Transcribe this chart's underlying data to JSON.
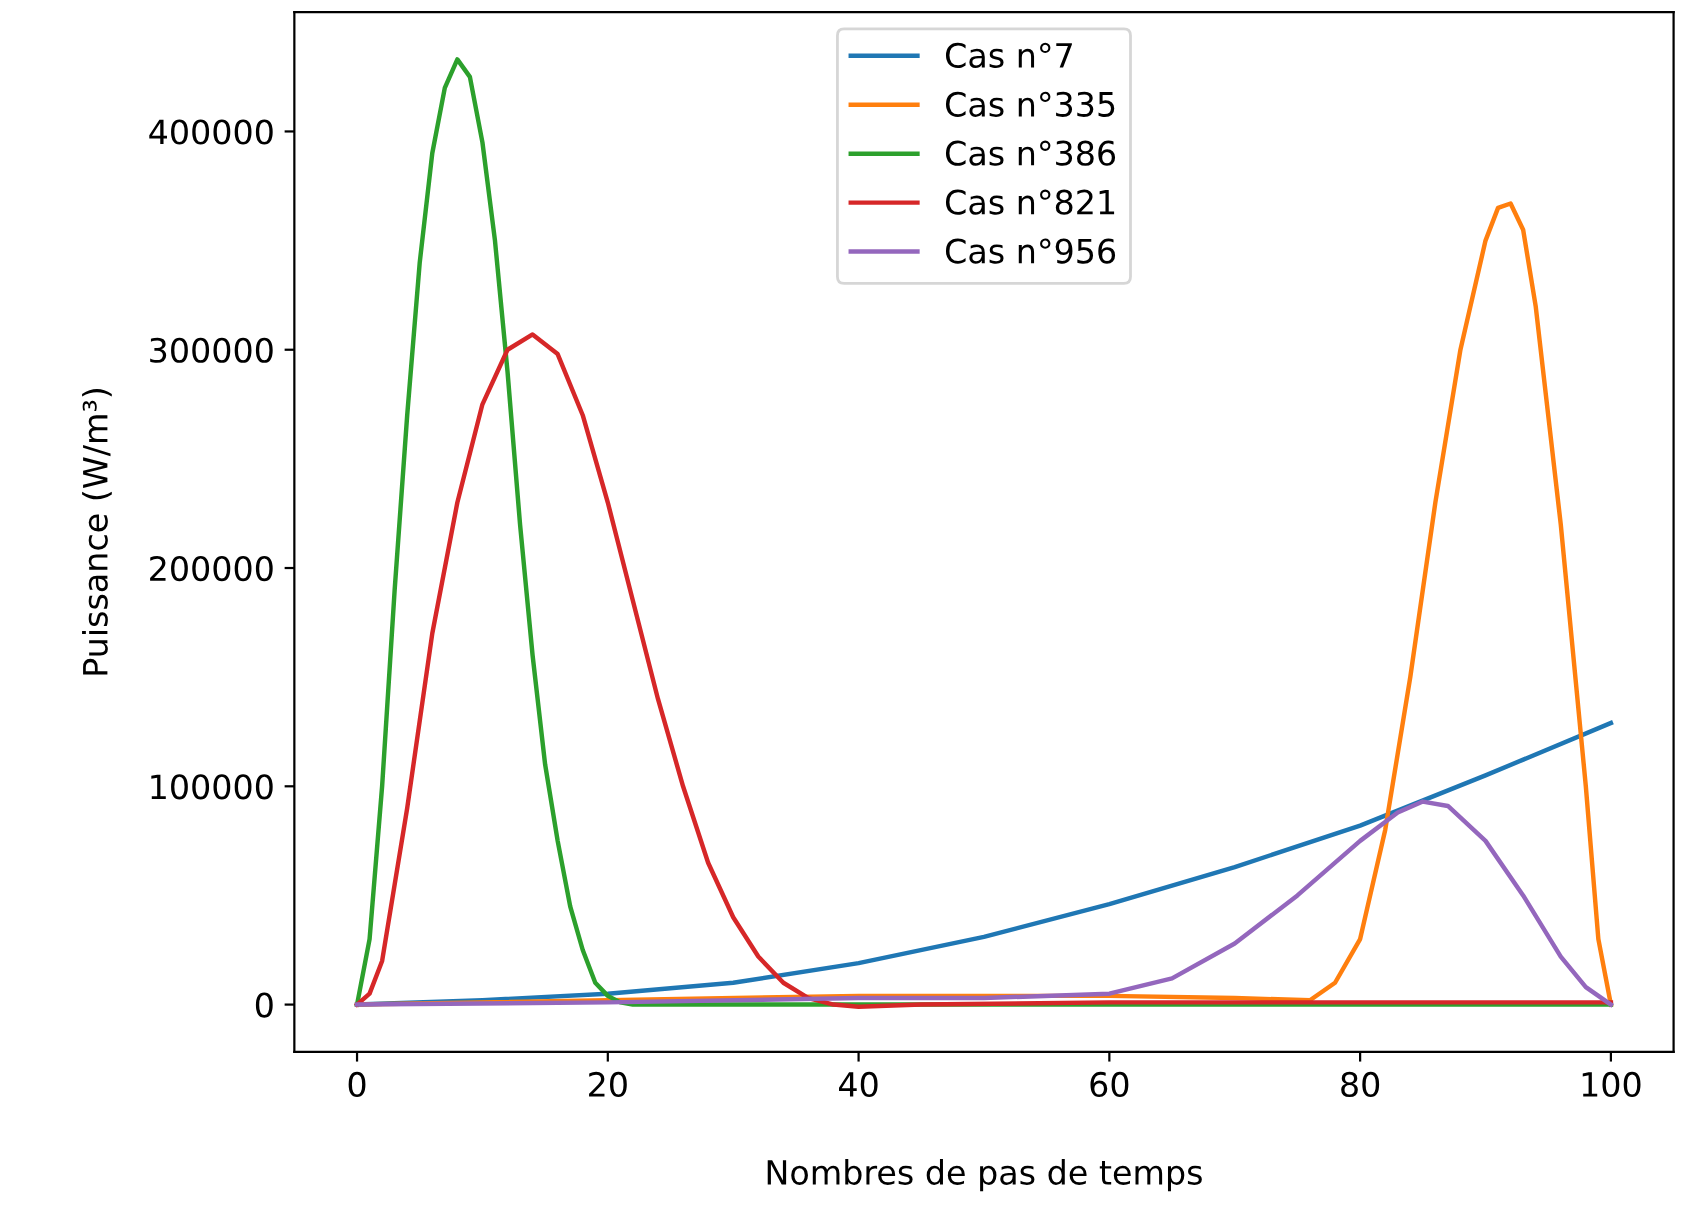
{
  "chart_data": {
    "type": "line",
    "xlabel": "Nombres de pas de temps",
    "ylabel": "Puissance (W/m³)",
    "xlim": [
      -5,
      105
    ],
    "ylim": [
      -21650,
      454650
    ],
    "xticks": [
      0,
      20,
      40,
      60,
      80,
      100
    ],
    "yticks": [
      0,
      100000,
      200000,
      300000,
      400000
    ],
    "grid": false,
    "legend": "top",
    "marker": "none",
    "line_style": "solid",
    "series": [
      {
        "name": "Cas n°7",
        "color": "#1f77b4",
        "x": [
          0,
          10,
          20,
          30,
          40,
          50,
          60,
          70,
          80,
          90,
          100
        ],
        "values": [
          0,
          2000,
          5000,
          10000,
          19000,
          31000,
          46000,
          63000,
          82000,
          105000,
          129000
        ]
      },
      {
        "name": "Cas n°335",
        "color": "#ff7f0e",
        "x": [
          0,
          40,
          50,
          60,
          70,
          76,
          78,
          80,
          82,
          84,
          86,
          88,
          90,
          91,
          92,
          93,
          94,
          96,
          98,
          99,
          100
        ],
        "values": [
          0,
          4000,
          4000,
          4000,
          3000,
          2000,
          10000,
          30000,
          80000,
          150000,
          230000,
          300000,
          350000,
          365000,
          367000,
          355000,
          320000,
          220000,
          100000,
          30000,
          0
        ]
      },
      {
        "name": "Cas n°386",
        "color": "#2ca02c",
        "x": [
          0,
          1,
          2,
          3,
          4,
          5,
          6,
          7,
          8,
          9,
          10,
          11,
          12,
          13,
          14,
          15,
          16,
          17,
          18,
          19,
          20,
          21,
          22,
          30,
          40,
          60,
          100
        ],
        "values": [
          0,
          30000,
          100000,
          190000,
          270000,
          340000,
          390000,
          420000,
          433000,
          425000,
          395000,
          350000,
          290000,
          220000,
          160000,
          110000,
          75000,
          45000,
          25000,
          10000,
          4000,
          1000,
          0,
          0,
          0,
          0,
          0
        ]
      },
      {
        "name": "Cas n°821",
        "color": "#d62728",
        "x": [
          0,
          1,
          2,
          4,
          6,
          8,
          10,
          12,
          14,
          16,
          18,
          20,
          22,
          24,
          26,
          28,
          30,
          32,
          34,
          36,
          38,
          40,
          45,
          60,
          80,
          100
        ],
        "values": [
          0,
          5000,
          20000,
          90000,
          170000,
          230000,
          275000,
          300000,
          307000,
          298000,
          270000,
          230000,
          185000,
          140000,
          100000,
          65000,
          40000,
          22000,
          10000,
          3000,
          0,
          -1000,
          0,
          1000,
          1000,
          1000
        ]
      },
      {
        "name": "Cas n°956",
        "color": "#9467bd",
        "x": [
          0,
          20,
          40,
          50,
          60,
          65,
          70,
          75,
          80,
          83,
          85,
          87,
          90,
          93,
          96,
          98,
          100
        ],
        "values": [
          0,
          1000,
          3000,
          3000,
          5000,
          12000,
          28000,
          50000,
          75000,
          88000,
          93000,
          91000,
          75000,
          50000,
          22000,
          8000,
          0
        ]
      }
    ]
  }
}
